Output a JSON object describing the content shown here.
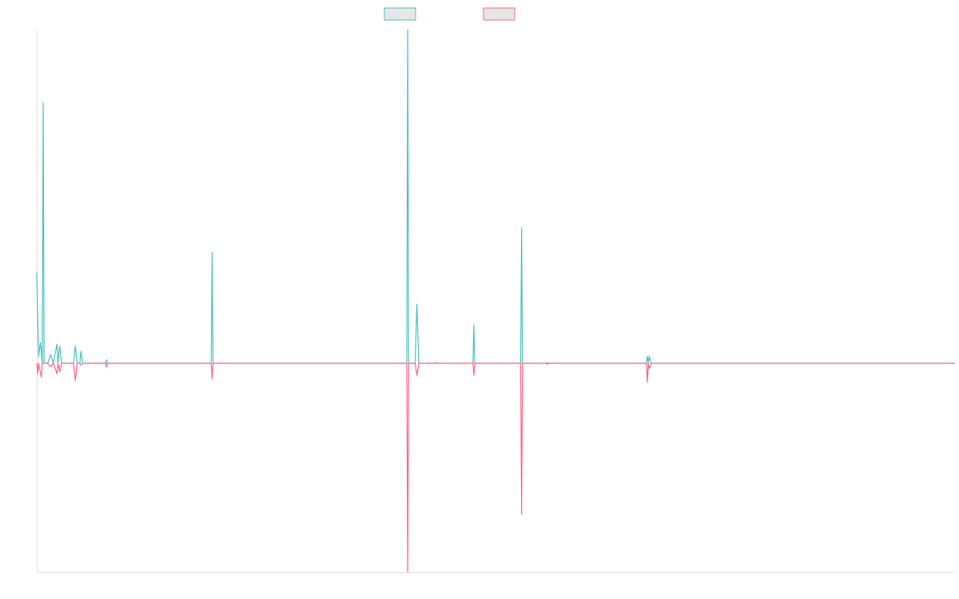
{
  "chart_data": {
    "type": "line",
    "title": "",
    "xlabel": "",
    "ylabel": "",
    "grid": false,
    "legend_placement": "top-center",
    "xlim": [
      0,
      1000
    ],
    "ylim": [
      -1.2,
      1.92
    ],
    "colors": {
      "axis": "#e0e0e0",
      "background": "#ffffff",
      "legend_fill": "#e6e6e6"
    },
    "series": [
      {
        "color": "#4bc0c0",
        "points": [
          [
            0,
            0.52
          ],
          [
            2,
            0.04
          ],
          [
            4,
            0.12
          ],
          [
            6,
            0.0
          ],
          [
            7,
            1.5
          ],
          [
            8,
            0.0
          ],
          [
            12,
            0.0
          ],
          [
            15,
            0.05
          ],
          [
            18,
            0.0
          ],
          [
            22,
            0.11
          ],
          [
            23,
            0.0
          ],
          [
            25,
            0.1
          ],
          [
            27,
            0.0
          ],
          [
            30,
            0.0
          ],
          [
            32,
            0.0
          ],
          [
            34,
            0.0
          ],
          [
            36,
            0.0
          ],
          [
            38,
            0.0
          ],
          [
            40,
            0.0
          ],
          [
            42,
            0.1
          ],
          [
            44,
            0.0
          ],
          [
            47,
            0.0
          ],
          [
            48,
            0.07
          ],
          [
            50,
            0.0
          ],
          [
            75,
            0.0
          ],
          [
            76,
            0.02
          ],
          [
            77,
            0.0
          ],
          [
            190,
            0.0
          ],
          [
            191,
            0.64
          ],
          [
            192,
            0.0
          ],
          [
            403,
            0.0
          ],
          [
            404,
            1.92
          ],
          [
            405,
            0.0
          ],
          [
            412,
            0.0
          ],
          [
            414,
            0.34
          ],
          [
            416,
            0.0
          ],
          [
            434,
            0.0
          ],
          [
            435,
            0.005
          ],
          [
            436,
            0.0
          ],
          [
            475,
            0.0
          ],
          [
            476,
            0.22
          ],
          [
            477,
            0.0
          ],
          [
            527,
            0.0
          ],
          [
            528,
            0.78
          ],
          [
            529,
            0.0
          ],
          [
            555,
            0.0
          ],
          [
            556,
            0.004
          ],
          [
            557,
            0.0
          ],
          [
            664,
            0.0
          ],
          [
            665,
            0.04
          ],
          [
            666,
            0.0
          ],
          [
            667,
            0.04
          ],
          [
            669,
            0.0
          ],
          [
            1000,
            0.0
          ]
        ]
      },
      {
        "color": "#ff6384",
        "points": [
          [
            0,
            0.0
          ],
          [
            1,
            -0.06
          ],
          [
            2,
            0.0
          ],
          [
            3,
            -0.03
          ],
          [
            5,
            -0.08
          ],
          [
            6,
            0.0
          ],
          [
            12,
            0.0
          ],
          [
            15,
            -0.02
          ],
          [
            18,
            0.0
          ],
          [
            22,
            -0.06
          ],
          [
            23,
            0.0
          ],
          [
            25,
            -0.05
          ],
          [
            27,
            0.0
          ],
          [
            30,
            0.0
          ],
          [
            32,
            0.0
          ],
          [
            34,
            0.0
          ],
          [
            36,
            0.0
          ],
          [
            38,
            0.0
          ],
          [
            40,
            0.0
          ],
          [
            42,
            -0.1
          ],
          [
            44,
            0.0
          ],
          [
            47,
            0.0
          ],
          [
            48,
            -0.01
          ],
          [
            50,
            0.0
          ],
          [
            75,
            0.0
          ],
          [
            76,
            -0.02
          ],
          [
            77,
            0.0
          ],
          [
            190,
            0.0
          ],
          [
            191,
            -0.09
          ],
          [
            192,
            0.0
          ],
          [
            403,
            0.0
          ],
          [
            404,
            -1.2
          ],
          [
            405,
            0.0
          ],
          [
            412,
            0.0
          ],
          [
            414,
            -0.07
          ],
          [
            416,
            0.0
          ],
          [
            475,
            0.0
          ],
          [
            476,
            -0.07
          ],
          [
            477,
            0.0
          ],
          [
            527,
            0.0
          ],
          [
            528,
            -0.87
          ],
          [
            529,
            0.0
          ],
          [
            555,
            0.0
          ],
          [
            556,
            -0.005
          ],
          [
            557,
            0.0
          ],
          [
            664,
            0.0
          ],
          [
            665,
            -0.11
          ],
          [
            666,
            0.0
          ],
          [
            667,
            -0.03
          ],
          [
            669,
            0.0
          ],
          [
            1000,
            0.0
          ]
        ]
      }
    ]
  }
}
